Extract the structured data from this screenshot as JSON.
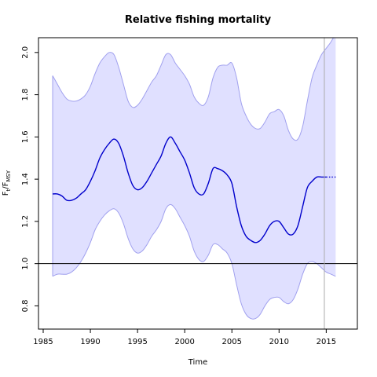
{
  "chart_data": {
    "type": "line",
    "title": "Relative fishing mortality",
    "xlabel": "Time",
    "ylabel": {
      "main": "F",
      "sub1": "t",
      "slash": "/F",
      "sub2": "MSY"
    },
    "xlim": [
      1984.5,
      2018.3
    ],
    "ylim": [
      0.69,
      2.07
    ],
    "xticks": [
      "1985",
      "1990",
      "1995",
      "2000",
      "2005",
      "2010",
      "2015"
    ],
    "yticks": [
      "0.8",
      "1.0",
      "1.2",
      "1.4",
      "1.6",
      "1.8",
      "2.0"
    ],
    "grid": false,
    "reference_line_y": 1.0,
    "vertical_line_x": 2014.8,
    "colors": {
      "line": "#0000cc",
      "band_fill": "#e0e0ff",
      "band_edge": "#a0a0ee",
      "refline": "#000000",
      "vline": "#aaaaaa"
    },
    "series": [
      {
        "x": [
          1986.0,
          1986.5,
          1987.0,
          1987.5,
          1988.0,
          1988.5,
          1989.0,
          1989.5,
          1990.0,
          1990.5,
          1991.0,
          1991.5,
          1992.0,
          1992.5,
          1993.0,
          1993.5,
          1994.0,
          1994.5,
          1995.0,
          1995.5,
          1996.0,
          1996.5,
          1997.0,
          1997.5,
          1998.0,
          1998.5,
          1999.0,
          1999.5,
          2000.0,
          2000.5,
          2001.0,
          2001.5,
          2002.0,
          2002.5,
          2003.0,
          2003.5,
          2004.0,
          2004.5,
          2005.0,
          2005.5,
          2006.0,
          2006.5,
          2007.0,
          2007.5,
          2008.0,
          2008.5,
          2009.0,
          2009.5,
          2010.0,
          2010.5,
          2011.0,
          2011.5,
          2012.0,
          2012.5,
          2013.0,
          2013.5,
          2014.0,
          2014.5,
          2015.0
        ],
        "values": [
          1.33,
          1.33,
          1.32,
          1.3,
          1.3,
          1.31,
          1.33,
          1.35,
          1.39,
          1.44,
          1.5,
          1.54,
          1.57,
          1.59,
          1.57,
          1.51,
          1.43,
          1.37,
          1.35,
          1.36,
          1.39,
          1.43,
          1.47,
          1.51,
          1.57,
          1.6,
          1.57,
          1.53,
          1.49,
          1.43,
          1.36,
          1.33,
          1.33,
          1.38,
          1.45,
          1.45,
          1.44,
          1.42,
          1.38,
          1.27,
          1.18,
          1.13,
          1.11,
          1.1,
          1.11,
          1.14,
          1.18,
          1.2,
          1.2,
          1.17,
          1.14,
          1.14,
          1.18,
          1.27,
          1.36,
          1.39,
          1.41,
          1.41,
          1.41
        ],
        "lower": [
          0.94,
          0.95,
          0.95,
          0.95,
          0.96,
          0.98,
          1.01,
          1.05,
          1.1,
          1.16,
          1.2,
          1.23,
          1.25,
          1.26,
          1.24,
          1.19,
          1.12,
          1.07,
          1.05,
          1.06,
          1.09,
          1.13,
          1.16,
          1.2,
          1.26,
          1.28,
          1.26,
          1.22,
          1.18,
          1.13,
          1.06,
          1.02,
          1.01,
          1.04,
          1.09,
          1.09,
          1.07,
          1.05,
          1.0,
          0.9,
          0.81,
          0.76,
          0.74,
          0.74,
          0.76,
          0.8,
          0.83,
          0.84,
          0.84,
          0.82,
          0.81,
          0.83,
          0.88,
          0.95,
          1.0,
          1.01,
          1.0,
          0.98,
          0.96
        ],
        "upper": [
          1.89,
          1.85,
          1.81,
          1.78,
          1.77,
          1.77,
          1.78,
          1.8,
          1.84,
          1.9,
          1.95,
          1.98,
          2.0,
          1.99,
          1.93,
          1.85,
          1.77,
          1.74,
          1.75,
          1.78,
          1.82,
          1.86,
          1.89,
          1.94,
          1.99,
          1.99,
          1.95,
          1.92,
          1.89,
          1.85,
          1.79,
          1.76,
          1.75,
          1.79,
          1.88,
          1.93,
          1.94,
          1.94,
          1.95,
          1.88,
          1.76,
          1.7,
          1.66,
          1.64,
          1.64,
          1.67,
          1.71,
          1.72,
          1.73,
          1.7,
          1.63,
          1.59,
          1.59,
          1.65,
          1.77,
          1.88,
          1.94,
          1.99,
          2.02
        ]
      },
      {
        "style": "dotted",
        "x": [
          2015.0,
          2015.5,
          2016.0
        ],
        "values": [
          1.41,
          1.41,
          1.41
        ],
        "lower": [
          0.96,
          0.95,
          0.94
        ],
        "upper": [
          2.02,
          2.05,
          2.09
        ]
      }
    ]
  }
}
